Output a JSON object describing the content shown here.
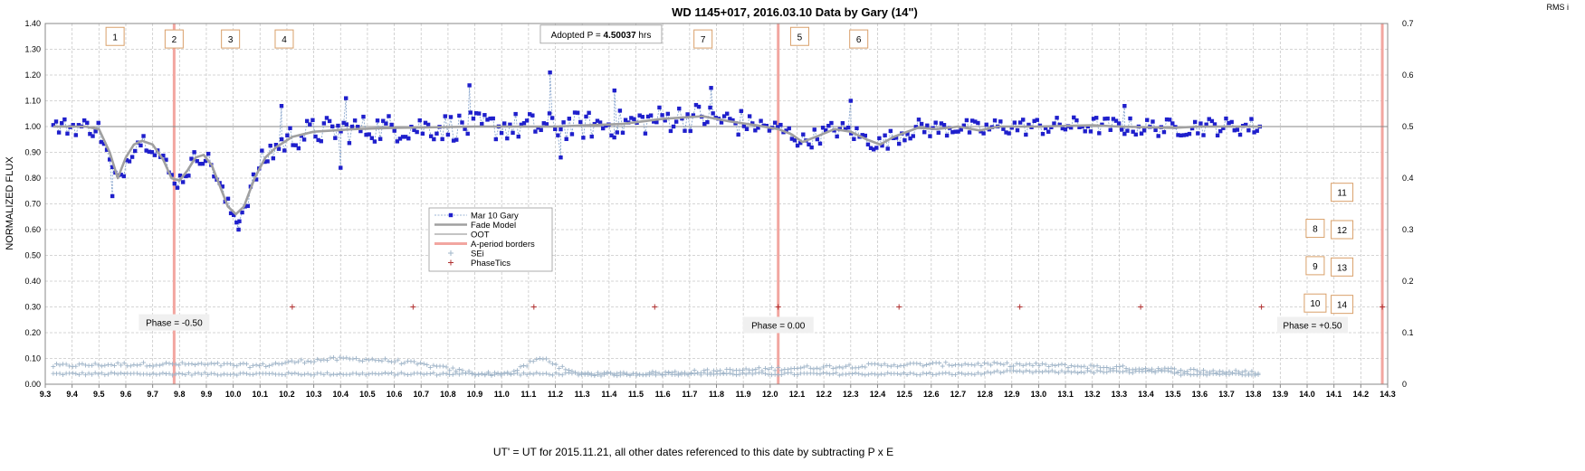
{
  "chart_data": {
    "type": "scatter",
    "title": "WD 1145+017, 2016.03.10 Data by Gary (14\")",
    "xlabel": "UT' = UT for 2015.11.21, all other dates referenced to this date by subtracting P x E",
    "ylabel": "NORMALIZED FLUX",
    "y2label": "RMS i",
    "xlim": [
      9.3,
      14.3
    ],
    "ylim": [
      0.0,
      1.4
    ],
    "y2lim": [
      0.0,
      0.7
    ],
    "x_ticks": [
      "9.3",
      "9.4",
      "9.5",
      "9.6",
      "9.7",
      "9.8",
      "9.9",
      "10.0",
      "10.1",
      "10.2",
      "10.3",
      "10.4",
      "10.5",
      "10.6",
      "10.7",
      "10.8",
      "10.9",
      "11.0",
      "11.1",
      "11.2",
      "11.3",
      "11.4",
      "11.5",
      "11.6",
      "11.7",
      "11.8",
      "11.9",
      "12.0",
      "12.1",
      "12.2",
      "12.3",
      "12.4",
      "12.5",
      "12.6",
      "12.7",
      "12.8",
      "12.9",
      "13.0",
      "13.1",
      "13.2",
      "13.3",
      "13.4",
      "13.5",
      "13.6",
      "13.7",
      "13.8",
      "13.9",
      "14.0",
      "14.1",
      "14.2",
      "14.3"
    ],
    "y_ticks": [
      "0.00",
      "0.10",
      "0.20",
      "0.30",
      "0.40",
      "0.50",
      "0.60",
      "0.70",
      "0.80",
      "0.90",
      "1.00",
      "1.10",
      "1.20",
      "1.30",
      "1.40"
    ],
    "y2_ticks": [
      "0",
      "0.1",
      "0.2",
      "0.3",
      "0.4",
      "0.5",
      "0.6",
      "0.7"
    ],
    "grid": true,
    "legend_position": "center-left",
    "colors": {
      "data": "#1f1fcc",
      "data_line": "#7b9cc8",
      "model": "#a0a0a0",
      "oot": "#888888",
      "border": "#f2a6a0",
      "sei": "#9fb4c8",
      "phasetics": "#b03030",
      "box_border": "#d9a06a"
    },
    "series": [
      {
        "name": "Mar 10 Gary",
        "style": "blue squares with dashed line"
      },
      {
        "name": "Fade Model",
        "style": "thick gray line"
      },
      {
        "name": "OOT",
        "style": "thin gray line",
        "value": 1.0
      },
      {
        "name": "A-period borders",
        "style": "red vertical line",
        "x": [
          9.78,
          12.03,
          14.28
        ]
      },
      {
        "name": "SEi",
        "style": "light blue plus"
      },
      {
        "name": "PhaseTics",
        "style": "dark red plus",
        "y": 0.3,
        "x": [
          10.22,
          10.67,
          11.12,
          11.57,
          12.03,
          12.48,
          12.93,
          13.38,
          13.83,
          14.28
        ]
      }
    ],
    "model_points": [
      [
        9.33,
        1.0
      ],
      [
        9.45,
        1.0
      ],
      [
        9.5,
        0.99
      ],
      [
        9.54,
        0.9
      ],
      [
        9.57,
        0.8
      ],
      [
        9.6,
        0.88
      ],
      [
        9.63,
        0.93
      ],
      [
        9.66,
        0.945
      ],
      [
        9.7,
        0.93
      ],
      [
        9.74,
        0.87
      ],
      [
        9.77,
        0.8
      ],
      [
        9.8,
        0.79
      ],
      [
        9.83,
        0.83
      ],
      [
        9.86,
        0.88
      ],
      [
        9.89,
        0.89
      ],
      [
        9.92,
        0.85
      ],
      [
        9.95,
        0.77
      ],
      [
        9.98,
        0.69
      ],
      [
        10.01,
        0.66
      ],
      [
        10.04,
        0.69
      ],
      [
        10.08,
        0.8
      ],
      [
        10.12,
        0.88
      ],
      [
        10.16,
        0.92
      ],
      [
        10.22,
        0.96
      ],
      [
        10.3,
        0.98
      ],
      [
        10.45,
        0.99
      ],
      [
        10.6,
        0.995
      ],
      [
        10.9,
        1.0
      ],
      [
        11.2,
        1.0
      ],
      [
        11.45,
        1.01
      ],
      [
        11.6,
        1.03
      ],
      [
        11.75,
        1.04
      ],
      [
        11.85,
        1.02
      ],
      [
        11.95,
        1.005
      ],
      [
        12.03,
        0.99
      ],
      [
        12.08,
        0.97
      ],
      [
        12.12,
        0.94
      ],
      [
        12.17,
        0.96
      ],
      [
        12.24,
        0.99
      ],
      [
        12.3,
        0.98
      ],
      [
        12.36,
        0.95
      ],
      [
        12.41,
        0.93
      ],
      [
        12.46,
        0.96
      ],
      [
        12.55,
        0.995
      ],
      [
        12.62,
        0.99
      ],
      [
        12.7,
        1.0
      ],
      [
        12.78,
        0.985
      ],
      [
        12.85,
        1.0
      ],
      [
        13.0,
        1.0
      ],
      [
        13.2,
        1.005
      ],
      [
        13.3,
        1.0
      ],
      [
        13.5,
        0.995
      ],
      [
        13.6,
        1.0
      ],
      [
        13.83,
        1.0
      ]
    ],
    "observed_envelope": [
      [
        9.33,
        1.0
      ],
      [
        9.45,
        1.0
      ],
      [
        9.5,
        0.99
      ],
      [
        9.54,
        0.86
      ],
      [
        9.57,
        0.78
      ],
      [
        9.6,
        0.86
      ],
      [
        9.63,
        0.93
      ],
      [
        9.66,
        0.95
      ],
      [
        9.7,
        0.93
      ],
      [
        9.74,
        0.87
      ],
      [
        9.77,
        0.8
      ],
      [
        9.8,
        0.79
      ],
      [
        9.83,
        0.83
      ],
      [
        9.86,
        0.88
      ],
      [
        9.89,
        0.89
      ],
      [
        9.92,
        0.85
      ],
      [
        9.95,
        0.77
      ],
      [
        9.98,
        0.69
      ],
      [
        10.01,
        0.64
      ],
      [
        10.04,
        0.68
      ],
      [
        10.08,
        0.8
      ],
      [
        10.12,
        0.88
      ],
      [
        10.16,
        0.92
      ],
      [
        10.22,
        0.96
      ],
      [
        10.3,
        0.98
      ],
      [
        10.45,
        0.99
      ],
      [
        10.6,
        0.995
      ],
      [
        10.9,
        1.0
      ],
      [
        11.2,
        1.0
      ],
      [
        11.45,
        1.01
      ],
      [
        11.6,
        1.03
      ],
      [
        11.75,
        1.04
      ],
      [
        11.85,
        1.02
      ],
      [
        11.95,
        1.005
      ],
      [
        12.03,
        0.99
      ],
      [
        12.08,
        0.97
      ],
      [
        12.12,
        0.94
      ],
      [
        12.17,
        0.96
      ],
      [
        12.24,
        0.99
      ],
      [
        12.3,
        0.98
      ],
      [
        12.36,
        0.95
      ],
      [
        12.41,
        0.93
      ],
      [
        12.46,
        0.96
      ],
      [
        12.55,
        0.995
      ],
      [
        12.62,
        0.99
      ],
      [
        12.7,
        1.0
      ],
      [
        12.78,
        0.985
      ],
      [
        12.85,
        1.0
      ],
      [
        13.0,
        1.0
      ],
      [
        13.2,
        1.005
      ],
      [
        13.3,
        1.0
      ],
      [
        13.5,
        0.995
      ],
      [
        13.6,
        1.0
      ],
      [
        13.83,
        1.0
      ]
    ],
    "outlier_points": [
      [
        9.55,
        0.73
      ],
      [
        10.18,
        1.08
      ],
      [
        10.4,
        0.84
      ],
      [
        10.42,
        1.11
      ],
      [
        10.88,
        1.16
      ],
      [
        11.18,
        1.21
      ],
      [
        11.22,
        0.88
      ],
      [
        11.42,
        1.14
      ],
      [
        11.78,
        1.15
      ],
      [
        10.02,
        0.6
      ],
      [
        12.3,
        1.1
      ],
      [
        13.32,
        1.08
      ]
    ],
    "annotations": {
      "adopted_period_prefix": "Adopted P = ",
      "adopted_period_value": "4.50037",
      "adopted_period_unit": " hrs",
      "phase_labels": [
        {
          "text": "Phase = -0.50",
          "x": 9.78,
          "y": 0.24
        },
        {
          "text": "Phase = 0.00",
          "x": 12.03,
          "y": 0.23
        },
        {
          "text": "Phase = +0.50",
          "x": 14.02,
          "y": 0.23
        }
      ],
      "numbered_boxes": [
        {
          "text": "1",
          "x": 9.56,
          "y": 1.35
        },
        {
          "text": "2",
          "x": 9.78,
          "y": 1.34
        },
        {
          "text": "3",
          "x": 9.99,
          "y": 1.34
        },
        {
          "text": "4",
          "x": 10.19,
          "y": 1.34
        },
        {
          "text": "7",
          "x": 11.75,
          "y": 1.34
        },
        {
          "text": "5",
          "x": 12.11,
          "y": 1.35
        },
        {
          "text": "6",
          "x": 12.33,
          "y": 1.34
        },
        {
          "text": "8",
          "x": 14.03,
          "y": 0.605
        },
        {
          "text": "9",
          "x": 14.03,
          "y": 0.46
        },
        {
          "text": "10",
          "x": 14.03,
          "y": 0.315
        },
        {
          "text": "11",
          "x": 14.13,
          "y": 0.745
        },
        {
          "text": "12",
          "x": 14.13,
          "y": 0.6
        },
        {
          "text": "13",
          "x": 14.13,
          "y": 0.455
        },
        {
          "text": "14",
          "x": 14.13,
          "y": 0.31
        }
      ]
    }
  }
}
